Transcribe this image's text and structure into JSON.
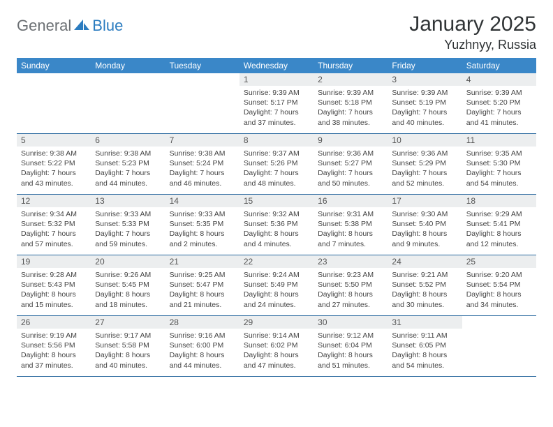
{
  "logo": {
    "text1": "General",
    "text2": "Blue"
  },
  "title": "January 2025",
  "location": "Yuzhnyy, Russia",
  "colors": {
    "header_bar": "#3a87c8",
    "header_text": "#ffffff",
    "daynum_bg": "#eceeef",
    "row_border": "#2b6aa0",
    "logo_gray": "#6b6f73",
    "logo_blue": "#2b7cc0"
  },
  "weekdays": [
    "Sunday",
    "Monday",
    "Tuesday",
    "Wednesday",
    "Thursday",
    "Friday",
    "Saturday"
  ],
  "weeks": [
    [
      null,
      null,
      null,
      {
        "num": "1",
        "sunrise": "9:39 AM",
        "sunset": "5:17 PM",
        "daylight": "7 hours and 37 minutes."
      },
      {
        "num": "2",
        "sunrise": "9:39 AM",
        "sunset": "5:18 PM",
        "daylight": "7 hours and 38 minutes."
      },
      {
        "num": "3",
        "sunrise": "9:39 AM",
        "sunset": "5:19 PM",
        "daylight": "7 hours and 40 minutes."
      },
      {
        "num": "4",
        "sunrise": "9:39 AM",
        "sunset": "5:20 PM",
        "daylight": "7 hours and 41 minutes."
      }
    ],
    [
      {
        "num": "5",
        "sunrise": "9:38 AM",
        "sunset": "5:22 PM",
        "daylight": "7 hours and 43 minutes."
      },
      {
        "num": "6",
        "sunrise": "9:38 AM",
        "sunset": "5:23 PM",
        "daylight": "7 hours and 44 minutes."
      },
      {
        "num": "7",
        "sunrise": "9:38 AM",
        "sunset": "5:24 PM",
        "daylight": "7 hours and 46 minutes."
      },
      {
        "num": "8",
        "sunrise": "9:37 AM",
        "sunset": "5:26 PM",
        "daylight": "7 hours and 48 minutes."
      },
      {
        "num": "9",
        "sunrise": "9:36 AM",
        "sunset": "5:27 PM",
        "daylight": "7 hours and 50 minutes."
      },
      {
        "num": "10",
        "sunrise": "9:36 AM",
        "sunset": "5:29 PM",
        "daylight": "7 hours and 52 minutes."
      },
      {
        "num": "11",
        "sunrise": "9:35 AM",
        "sunset": "5:30 PM",
        "daylight": "7 hours and 54 minutes."
      }
    ],
    [
      {
        "num": "12",
        "sunrise": "9:34 AM",
        "sunset": "5:32 PM",
        "daylight": "7 hours and 57 minutes."
      },
      {
        "num": "13",
        "sunrise": "9:33 AM",
        "sunset": "5:33 PM",
        "daylight": "7 hours and 59 minutes."
      },
      {
        "num": "14",
        "sunrise": "9:33 AM",
        "sunset": "5:35 PM",
        "daylight": "8 hours and 2 minutes."
      },
      {
        "num": "15",
        "sunrise": "9:32 AM",
        "sunset": "5:36 PM",
        "daylight": "8 hours and 4 minutes."
      },
      {
        "num": "16",
        "sunrise": "9:31 AM",
        "sunset": "5:38 PM",
        "daylight": "8 hours and 7 minutes."
      },
      {
        "num": "17",
        "sunrise": "9:30 AM",
        "sunset": "5:40 PM",
        "daylight": "8 hours and 9 minutes."
      },
      {
        "num": "18",
        "sunrise": "9:29 AM",
        "sunset": "5:41 PM",
        "daylight": "8 hours and 12 minutes."
      }
    ],
    [
      {
        "num": "19",
        "sunrise": "9:28 AM",
        "sunset": "5:43 PM",
        "daylight": "8 hours and 15 minutes."
      },
      {
        "num": "20",
        "sunrise": "9:26 AM",
        "sunset": "5:45 PM",
        "daylight": "8 hours and 18 minutes."
      },
      {
        "num": "21",
        "sunrise": "9:25 AM",
        "sunset": "5:47 PM",
        "daylight": "8 hours and 21 minutes."
      },
      {
        "num": "22",
        "sunrise": "9:24 AM",
        "sunset": "5:49 PM",
        "daylight": "8 hours and 24 minutes."
      },
      {
        "num": "23",
        "sunrise": "9:23 AM",
        "sunset": "5:50 PM",
        "daylight": "8 hours and 27 minutes."
      },
      {
        "num": "24",
        "sunrise": "9:21 AM",
        "sunset": "5:52 PM",
        "daylight": "8 hours and 30 minutes."
      },
      {
        "num": "25",
        "sunrise": "9:20 AM",
        "sunset": "5:54 PM",
        "daylight": "8 hours and 34 minutes."
      }
    ],
    [
      {
        "num": "26",
        "sunrise": "9:19 AM",
        "sunset": "5:56 PM",
        "daylight": "8 hours and 37 minutes."
      },
      {
        "num": "27",
        "sunrise": "9:17 AM",
        "sunset": "5:58 PM",
        "daylight": "8 hours and 40 minutes."
      },
      {
        "num": "28",
        "sunrise": "9:16 AM",
        "sunset": "6:00 PM",
        "daylight": "8 hours and 44 minutes."
      },
      {
        "num": "29",
        "sunrise": "9:14 AM",
        "sunset": "6:02 PM",
        "daylight": "8 hours and 47 minutes."
      },
      {
        "num": "30",
        "sunrise": "9:12 AM",
        "sunset": "6:04 PM",
        "daylight": "8 hours and 51 minutes."
      },
      {
        "num": "31",
        "sunrise": "9:11 AM",
        "sunset": "6:05 PM",
        "daylight": "8 hours and 54 minutes."
      },
      null
    ]
  ],
  "labels": {
    "sunrise": "Sunrise:",
    "sunset": "Sunset:",
    "daylight": "Daylight:"
  }
}
